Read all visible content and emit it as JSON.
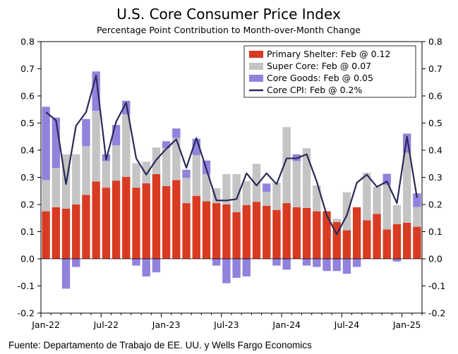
{
  "chart_data": {
    "type": "bar",
    "stacked": true,
    "title": "U.S. Core Consumer Price Index",
    "subtitle": "Percentage Point Contribution to Month-over-Month Change",
    "source": "Fuente: Departamento de Trabajo de EE. UU. y Wells Fargo Economics",
    "ylim": [
      -0.2,
      0.8
    ],
    "yticks": [
      -0.2,
      -0.1,
      0.0,
      0.1,
      0.2,
      0.3,
      0.4,
      0.5,
      0.6,
      0.7,
      0.8
    ],
    "ytick_labels": [
      "-0.2",
      "-0.1",
      "0.0",
      "0.1",
      "0.2",
      "0.3",
      "0.4",
      "0.5",
      "0.6",
      "0.7",
      "0.8"
    ],
    "x_labels": [
      {
        "index": 0,
        "label": "Jan-22"
      },
      {
        "index": 6,
        "label": "Jul-22"
      },
      {
        "index": 12,
        "label": "Jan-23"
      },
      {
        "index": 18,
        "label": "Jul-23"
      },
      {
        "index": 24,
        "label": "Jan-24"
      },
      {
        "index": 30,
        "label": "Jul-24"
      },
      {
        "index": 36,
        "label": "Jan-25"
      }
    ],
    "categories": [
      "2022-01",
      "2022-02",
      "2022-03",
      "2022-04",
      "2022-05",
      "2022-06",
      "2022-07",
      "2022-08",
      "2022-09",
      "2022-10",
      "2022-11",
      "2022-12",
      "2023-01",
      "2023-02",
      "2023-03",
      "2023-04",
      "2023-05",
      "2023-06",
      "2023-07",
      "2023-08",
      "2023-09",
      "2023-10",
      "2023-11",
      "2023-12",
      "2024-01",
      "2024-02",
      "2024-03",
      "2024-04",
      "2024-05",
      "2024-06",
      "2024-07",
      "2024-08",
      "2024-09",
      "2024-10",
      "2024-11",
      "2024-12",
      "2025-01",
      "2025-02"
    ],
    "series": [
      {
        "name": "Primary Shelter: Feb @ 0.12",
        "color": "#d83b22",
        "values": [
          0.175,
          0.19,
          0.185,
          0.2,
          0.235,
          0.285,
          0.262,
          0.288,
          0.302,
          0.262,
          0.278,
          0.312,
          0.268,
          0.29,
          0.205,
          0.232,
          0.212,
          0.205,
          0.2,
          0.172,
          0.198,
          0.21,
          0.195,
          0.18,
          0.205,
          0.19,
          0.187,
          0.175,
          0.175,
          0.135,
          0.105,
          0.19,
          0.142,
          0.165,
          0.108,
          0.128,
          0.133,
          0.118
        ]
      },
      {
        "name": "Super Core: Feb @ 0.07",
        "color": "#c4c4c4",
        "values": [
          0.115,
          0.145,
          0.2,
          0.185,
          0.18,
          0.26,
          0.098,
          0.13,
          0.23,
          0.09,
          0.08,
          0.098,
          0.14,
          0.155,
          0.093,
          0.15,
          0.1,
          0.055,
          0.112,
          0.14,
          0.088,
          0.14,
          0.052,
          0.1,
          0.28,
          0.17,
          0.22,
          0.095,
          0.0,
          0.012,
          0.14,
          0.0,
          0.175,
          0.1,
          0.165,
          0.07,
          0.258,
          0.073
        ]
      },
      {
        "name": "Core Goods: Feb @ 0.05",
        "color": "#9182dc",
        "values": [
          0.27,
          0.185,
          -0.11,
          -0.03,
          0.1,
          0.145,
          0.025,
          0.075,
          0.05,
          -0.025,
          -0.065,
          -0.05,
          0.025,
          0.035,
          0.03,
          0.06,
          0.05,
          -0.025,
          -0.09,
          -0.07,
          -0.065,
          0.0,
          0.03,
          -0.025,
          -0.04,
          0.025,
          -0.025,
          -0.03,
          -0.045,
          -0.045,
          -0.055,
          -0.03,
          0.0,
          0.0,
          0.04,
          -0.01,
          0.07,
          0.05
        ]
      },
      {
        "name": "Core CPI: Feb @ 0.2%",
        "type": "line",
        "color": "#2a2a5a",
        "values": [
          0.54,
          0.51,
          0.275,
          0.49,
          0.54,
          0.675,
          0.365,
          0.505,
          0.575,
          0.37,
          0.31,
          0.365,
          0.405,
          0.44,
          0.335,
          0.445,
          0.33,
          0.215,
          0.215,
          0.22,
          0.315,
          0.27,
          0.315,
          0.275,
          0.37,
          0.37,
          0.385,
          0.285,
          0.16,
          0.09,
          0.16,
          0.28,
          0.31,
          0.265,
          0.285,
          0.205,
          0.45,
          0.225
        ]
      }
    ]
  }
}
